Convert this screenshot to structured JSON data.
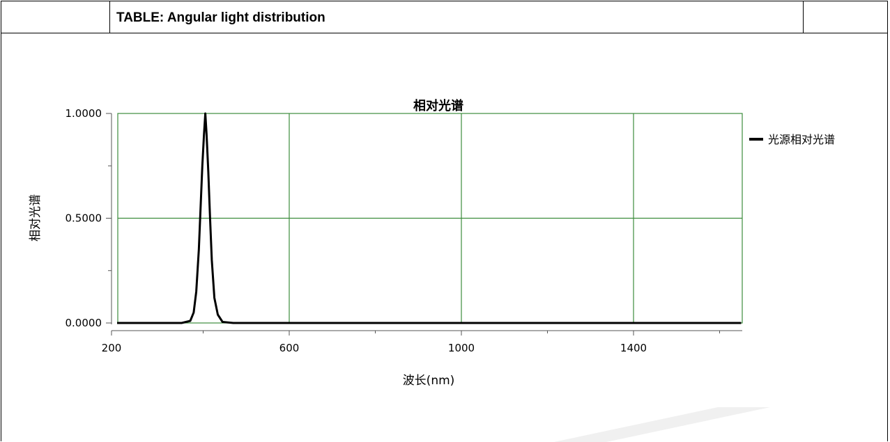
{
  "table": {
    "title": "TABLE: Angular light distribution"
  },
  "chart_data": {
    "type": "line",
    "title": "相对光谱",
    "xlabel": "波长(nm)",
    "ylabel": "相对光谱",
    "xlim": [
      200,
      1650
    ],
    "ylim": [
      0,
      1
    ],
    "x_ticks": [
      200,
      600,
      1000,
      1400
    ],
    "x_tick_labels": [
      "200",
      "600",
      "1000",
      "1400"
    ],
    "y_ticks": [
      0,
      0.5,
      1
    ],
    "y_tick_labels": [
      "0.0000",
      "0.5000",
      "1.0000"
    ],
    "grid": true,
    "grid_color": "#3c8c3c",
    "legend_position": "right",
    "series": [
      {
        "name": "光源相对光谱",
        "color": "#000000",
        "x": [
          200,
          350,
          370,
          378,
          384,
          390,
          394,
          398,
          402,
          405,
          408,
          412,
          416,
          420,
          426,
          434,
          445,
          470,
          1650
        ],
        "y": [
          0,
          0,
          0.01,
          0.05,
          0.15,
          0.35,
          0.55,
          0.75,
          0.9,
          1.0,
          0.9,
          0.72,
          0.5,
          0.3,
          0.12,
          0.04,
          0.005,
          0,
          0
        ]
      }
    ]
  }
}
